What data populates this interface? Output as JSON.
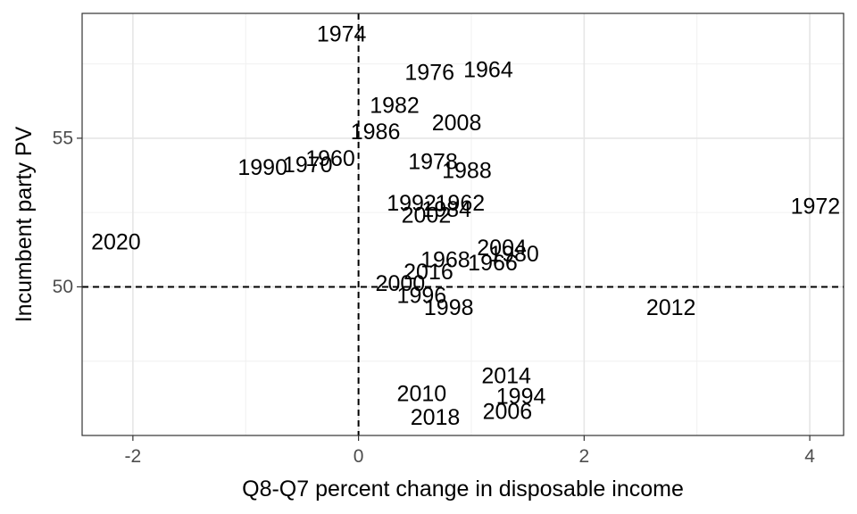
{
  "chart_data": {
    "type": "scatter",
    "title": "",
    "xlabel": "Q8-Q7 percent change in disposable income",
    "ylabel": "Incumbent party PV",
    "xlim": [
      -2.45,
      4.3
    ],
    "ylim": [
      45.0,
      59.2
    ],
    "x_ticks": [
      -2,
      0,
      2,
      4
    ],
    "x_tick_labels": [
      "-2",
      "0",
      "2",
      "4"
    ],
    "y_ticks": [
      50,
      55
    ],
    "y_tick_labels": [
      "50",
      "55"
    ],
    "x_minor": [
      -1,
      1,
      3
    ],
    "y_minor": [
      47.5,
      52.5,
      57.5
    ],
    "reference_lines": {
      "x": 0,
      "y": 50
    },
    "grid": true,
    "points": [
      {
        "label": "1974",
        "x": -0.15,
        "y": 58.5
      },
      {
        "label": "1976",
        "x": 0.63,
        "y": 57.2
      },
      {
        "label": "1964",
        "x": 1.15,
        "y": 57.3
      },
      {
        "label": "1982",
        "x": 0.32,
        "y": 56.1
      },
      {
        "label": "2008",
        "x": 0.87,
        "y": 55.5
      },
      {
        "label": "1986",
        "x": 0.15,
        "y": 55.2
      },
      {
        "label": "1990",
        "x": -0.85,
        "y": 54.0
      },
      {
        "label": "1970",
        "x": -0.45,
        "y": 54.1
      },
      {
        "label": "1960",
        "x": -0.25,
        "y": 54.3
      },
      {
        "label": "1978",
        "x": 0.66,
        "y": 54.2
      },
      {
        "label": "1988",
        "x": 0.96,
        "y": 53.9
      },
      {
        "label": "1992",
        "x": 0.47,
        "y": 52.8
      },
      {
        "label": "1962",
        "x": 0.9,
        "y": 52.8
      },
      {
        "label": "1984",
        "x": 0.78,
        "y": 52.6
      },
      {
        "label": "2002",
        "x": 0.6,
        "y": 52.4
      },
      {
        "label": "1972",
        "x": 4.05,
        "y": 52.7
      },
      {
        "label": "2020",
        "x": -2.15,
        "y": 51.5
      },
      {
        "label": "2004",
        "x": 1.27,
        "y": 51.3
      },
      {
        "label": "1980",
        "x": 1.38,
        "y": 51.1
      },
      {
        "label": "1968",
        "x": 0.77,
        "y": 50.9
      },
      {
        "label": "1966",
        "x": 1.19,
        "y": 50.8
      },
      {
        "label": "2016",
        "x": 0.62,
        "y": 50.5
      },
      {
        "label": "2000",
        "x": 0.37,
        "y": 50.1
      },
      {
        "label": "1996",
        "x": 0.56,
        "y": 49.7
      },
      {
        "label": "1998",
        "x": 0.8,
        "y": 49.3
      },
      {
        "label": "2012",
        "x": 2.77,
        "y": 49.3
      },
      {
        "label": "2014",
        "x": 1.31,
        "y": 47.0
      },
      {
        "label": "2010",
        "x": 0.56,
        "y": 46.4
      },
      {
        "label": "1994",
        "x": 1.44,
        "y": 46.3
      },
      {
        "label": "2006",
        "x": 1.32,
        "y": 45.8
      },
      {
        "label": "2018",
        "x": 0.68,
        "y": 45.6
      }
    ]
  }
}
